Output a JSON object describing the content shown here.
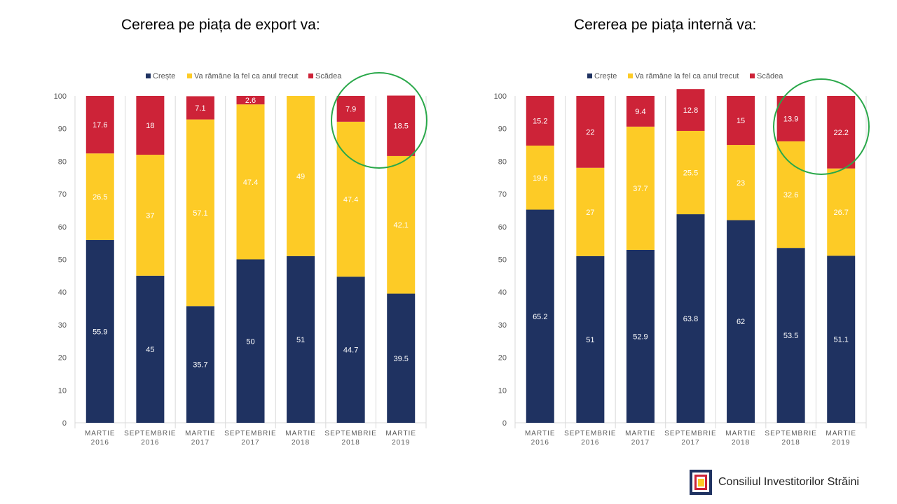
{
  "colors": {
    "creste": "#1f3261",
    "la_fel": "#fdcb26",
    "scadea": "#cd2338",
    "highlight": "#2aa84a",
    "grid": "#d9d9d9",
    "axis_text": "#595959"
  },
  "logo": {
    "text": "Consiliul Investitorilor Străini",
    "icon": "fic-logo-icon"
  },
  "chart_data": [
    {
      "type": "bar",
      "stacked": true,
      "title": "Cererea pe piața de export va:",
      "categories": [
        [
          "MARTIE",
          "2016"
        ],
        [
          "SEPTEMBRIE",
          "2016"
        ],
        [
          "MARTIE",
          "2017"
        ],
        [
          "SEPTEMBRIE",
          "2017"
        ],
        [
          "MARTIE",
          "2018"
        ],
        [
          "SEPTEMBRIE",
          "2018"
        ],
        [
          "MARTIE",
          "2019"
        ]
      ],
      "legend_position": "top",
      "ylim": [
        0,
        100
      ],
      "yticks": [
        0,
        10,
        20,
        30,
        40,
        50,
        60,
        70,
        80,
        90,
        100
      ],
      "series": [
        {
          "name": "Crește",
          "color_key": "creste",
          "values": [
            55.9,
            45,
            35.7,
            50,
            51,
            44.7,
            39.5
          ],
          "labels": [
            "55.9",
            "45",
            "35.7",
            "50",
            "51",
            "44.7",
            "39.5"
          ]
        },
        {
          "name": "Va rămâne la fel ca anul trecut",
          "color_key": "la_fel",
          "values": [
            26.5,
            37,
            57.1,
            47.4,
            49,
            47.4,
            42.1
          ],
          "labels": [
            "26.5",
            "37",
            "57.1",
            "47.4",
            "49",
            "47.4",
            "42.1"
          ]
        },
        {
          "name": "Scădea",
          "color_key": "scadea",
          "values": [
            17.6,
            18,
            7.1,
            2.6,
            0,
            7.9,
            18.5
          ],
          "labels": [
            "17.6",
            "18",
            "7.1",
            "2.6",
            "",
            "7.9",
            "18.5"
          ]
        }
      ]
    },
    {
      "type": "bar",
      "stacked": true,
      "title": "Cererea pe piața internă va:",
      "categories": [
        [
          "MARTIE",
          "2016"
        ],
        [
          "SEPTEMBRIE",
          "2016"
        ],
        [
          "MARTIE",
          "2017"
        ],
        [
          "SEPTEMBRIE",
          "2017"
        ],
        [
          "MARTIE",
          "2018"
        ],
        [
          "SEPTEMBRIE",
          "2018"
        ],
        [
          "MARTIE",
          "2019"
        ]
      ],
      "legend_position": "top",
      "ylim": [
        0,
        100
      ],
      "yticks": [
        0,
        10,
        20,
        30,
        40,
        50,
        60,
        70,
        80,
        90,
        100
      ],
      "series": [
        {
          "name": "Crește",
          "color_key": "creste",
          "values": [
            65.2,
            51,
            52.9,
            63.8,
            62,
            53.5,
            51.1
          ],
          "labels": [
            "65.2",
            "51",
            "52.9",
            "63.8",
            "62",
            "53.5",
            "51.1"
          ]
        },
        {
          "name": "Va rămâne la fel ca anul trecut",
          "color_key": "la_fel",
          "values": [
            19.6,
            27,
            37.7,
            25.5,
            23,
            32.6,
            26.7
          ],
          "labels": [
            "19.6",
            "27",
            "37.7",
            "25.5",
            "23",
            "32.6",
            "26.7"
          ]
        },
        {
          "name": "Scădea",
          "color_key": "scadea",
          "values": [
            15.2,
            22,
            9.4,
            12.8,
            15,
            13.9,
            22.2
          ],
          "labels": [
            "15.2",
            "22",
            "9.4",
            "12.8",
            "15",
            "13.9",
            "22.2"
          ]
        }
      ]
    }
  ]
}
